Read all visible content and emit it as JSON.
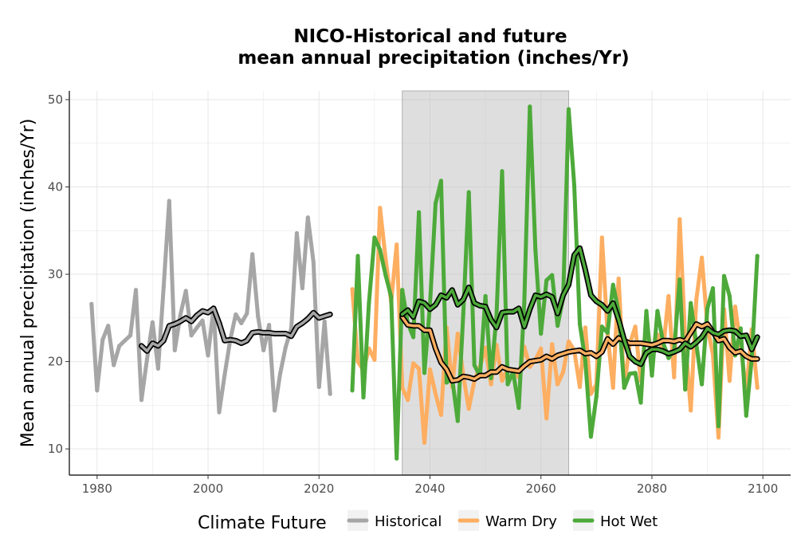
{
  "chart_data": {
    "type": "line",
    "title_lines": [
      "NICO-Historical and future",
      "mean annual precipitation (inches/Yr)"
    ],
    "xlabel": "",
    "ylabel": "Mean annual precipitation (inches/Yr)",
    "xlim": [
      1975,
      2105
    ],
    "ylim": [
      7,
      51
    ],
    "x_ticks": [
      1980,
      2000,
      2020,
      2040,
      2060,
      2080,
      2100
    ],
    "y_ticks": [
      10,
      20,
      30,
      40,
      50
    ],
    "grid": true,
    "shaded_period": [
      2035,
      2065
    ],
    "legend": {
      "title": "Climate Future",
      "placement": "bottom",
      "entries": [
        "Historical",
        "Warm Dry",
        "Hot Wet"
      ]
    },
    "series": [
      {
        "name": "Historical",
        "color": "#a6a6a6",
        "x": [
          1979,
          1980,
          1981,
          1982,
          1983,
          1984,
          1985,
          1986,
          1987,
          1988,
          1989,
          1990,
          1991,
          1992,
          1993,
          1994,
          1995,
          1996,
          1997,
          1998,
          1999,
          2000,
          2001,
          2002,
          2003,
          2004,
          2005,
          2006,
          2007,
          2008,
          2009,
          2010,
          2011,
          2012,
          2013,
          2014,
          2015,
          2016,
          2017,
          2018,
          2019,
          2020,
          2021,
          2022
        ],
        "values": [
          26.6,
          16.7,
          22.5,
          24.1,
          19.6,
          21.8,
          22.4,
          23.0,
          28.2,
          15.6,
          20.3,
          24.5,
          19.2,
          28.5,
          38.4,
          21.3,
          25.3,
          28.1,
          23.0,
          23.9,
          24.7,
          20.7,
          26.2,
          14.2,
          18.5,
          22.5,
          25.4,
          24.4,
          25.5,
          32.3,
          25.2,
          21.3,
          24.2,
          14.4,
          18.6,
          21.7,
          23.8,
          34.7,
          28.4,
          36.5,
          31.4,
          17.1,
          24.6,
          16.3
        ]
      },
      {
        "name": "Historical rolling mean",
        "color": "#a6a6a6",
        "x": [
          1988,
          1989,
          1990,
          1991,
          1992,
          1993,
          1994,
          1995,
          1996,
          1997,
          1998,
          1999,
          2000,
          2001,
          2002,
          2003,
          2004,
          2005,
          2006,
          2007,
          2008,
          2009,
          2010,
          2011,
          2012,
          2013,
          2014,
          2015,
          2016,
          2017,
          2018,
          2019,
          2020,
          2021,
          2022
        ],
        "values": [
          21.8,
          21.2,
          22.1,
          21.8,
          22.4,
          24.1,
          24.3,
          24.6,
          25.0,
          24.6,
          25.3,
          25.8,
          25.6,
          26.1,
          24.4,
          22.4,
          22.5,
          22.4,
          22.1,
          22.4,
          23.3,
          23.4,
          23.3,
          23.3,
          23.2,
          23.2,
          23.2,
          22.9,
          24.0,
          24.4,
          24.9,
          25.6,
          25.0,
          25.2,
          25.4
        ]
      },
      {
        "name": "Warm Dry",
        "color": "#fdae61",
        "x": [
          2026,
          2027,
          2028,
          2029,
          2030,
          2031,
          2032,
          2033,
          2034,
          2035,
          2036,
          2037,
          2038,
          2039,
          2040,
          2041,
          2042,
          2043,
          2044,
          2045,
          2046,
          2047,
          2048,
          2049,
          2050,
          2051,
          2052,
          2053,
          2054,
          2055,
          2056,
          2057,
          2058,
          2059,
          2060,
          2061,
          2062,
          2063,
          2064,
          2065,
          2066,
          2067,
          2068,
          2069,
          2070,
          2071,
          2072,
          2073,
          2074,
          2075,
          2076,
          2077,
          2078,
          2079,
          2080,
          2081,
          2082,
          2083,
          2084,
          2085,
          2086,
          2087,
          2088,
          2089,
          2090,
          2091,
          2092,
          2093,
          2094,
          2095,
          2096,
          2097,
          2098,
          2099
        ],
        "values": [
          28.3,
          20.0,
          19.0,
          21.5,
          20.2,
          37.6,
          31.8,
          26.8,
          33.4,
          17.0,
          15.6,
          19.8,
          19.2,
          10.7,
          19.1,
          16.3,
          13.9,
          23.9,
          17.1,
          23.2,
          18.4,
          14.6,
          17.8,
          19.4,
          21.6,
          17.4,
          21.9,
          17.8,
          19.2,
          18.9,
          18.2,
          21.7,
          19.4,
          20.2,
          21.5,
          13.5,
          22.0,
          17.4,
          18.8,
          22.3,
          21.3,
          17.1,
          23.9,
          16.3,
          17.4,
          34.2,
          23.2,
          17.0,
          29.5,
          17.0,
          22.0,
          24.0,
          17.8,
          24.4,
          20.6,
          23.1,
          21.2,
          27.5,
          18.2,
          36.3,
          22.6,
          14.4,
          27.1,
          31.9,
          24.0,
          20.8,
          11.3,
          26.0,
          17.8,
          26.3,
          21.8,
          16.5,
          23.7,
          17.0
        ]
      },
      {
        "name": "Warm Dry rolling mean",
        "color": "#fdae61",
        "x": [
          2035,
          2036,
          2037,
          2038,
          2039,
          2040,
          2041,
          2042,
          2043,
          2044,
          2045,
          2046,
          2047,
          2048,
          2049,
          2050,
          2051,
          2052,
          2053,
          2054,
          2055,
          2056,
          2057,
          2058,
          2059,
          2060,
          2061,
          2062,
          2063,
          2064,
          2065,
          2066,
          2067,
          2068,
          2069,
          2070,
          2071,
          2072,
          2073,
          2074,
          2075,
          2076,
          2077,
          2078,
          2079,
          2080,
          2081,
          2082,
          2083,
          2084,
          2085,
          2086,
          2087,
          2088,
          2089,
          2090,
          2091,
          2092,
          2093,
          2094,
          2095,
          2096,
          2097,
          2098,
          2099
        ],
        "values": [
          25.1,
          24.2,
          24.1,
          24.1,
          23.6,
          23.6,
          21.5,
          19.9,
          19.1,
          17.8,
          17.9,
          18.3,
          18.2,
          18.0,
          18.4,
          18.4,
          18.8,
          18.8,
          19.4,
          19.1,
          19.0,
          18.9,
          19.5,
          20.0,
          20.1,
          20.2,
          20.6,
          20.3,
          20.7,
          20.9,
          21.1,
          21.2,
          21.3,
          20.9,
          21.0,
          20.6,
          21.1,
          22.6,
          22.0,
          22.7,
          22.4,
          22.1,
          22.1,
          22.1,
          22.0,
          21.9,
          22.1,
          22.4,
          22.4,
          22.3,
          22.5,
          22.3,
          23.3,
          24.3,
          24.0,
          24.3,
          23.4,
          22.4,
          22.6,
          21.6,
          21.0,
          21.2,
          20.6,
          20.3,
          20.3
        ]
      },
      {
        "name": "Hot Wet",
        "color": "#4daa3a",
        "x": [
          2026,
          2027,
          2028,
          2029,
          2030,
          2031,
          2032,
          2033,
          2034,
          2035,
          2036,
          2037,
          2038,
          2039,
          2040,
          2041,
          2042,
          2043,
          2044,
          2045,
          2046,
          2047,
          2048,
          2049,
          2050,
          2051,
          2052,
          2053,
          2054,
          2055,
          2056,
          2057,
          2058,
          2059,
          2060,
          2061,
          2062,
          2063,
          2064,
          2065,
          2066,
          2067,
          2068,
          2069,
          2070,
          2071,
          2072,
          2073,
          2074,
          2075,
          2076,
          2077,
          2078,
          2079,
          2080,
          2081,
          2082,
          2083,
          2084,
          2085,
          2086,
          2087,
          2088,
          2089,
          2090,
          2091,
          2092,
          2093,
          2094,
          2095,
          2096,
          2097,
          2098,
          2099
        ],
        "values": [
          16.7,
          32.1,
          15.9,
          26.7,
          34.2,
          32.8,
          29.9,
          27.4,
          8.9,
          28.2,
          24.4,
          22.8,
          37.1,
          18.7,
          26.5,
          38.1,
          40.7,
          17.6,
          18.1,
          13.2,
          25.5,
          39.4,
          19.6,
          18.3,
          27.5,
          18.1,
          25.3,
          41.8,
          17.4,
          18.8,
          14.7,
          26.7,
          49.2,
          32.8,
          23.2,
          29.3,
          29.9,
          24.1,
          27.3,
          48.9,
          40.2,
          24.3,
          20.1,
          11.4,
          16.0,
          24.0,
          23.3,
          28.8,
          25.7,
          17.0,
          18.6,
          18.7,
          15.3,
          25.8,
          18.4,
          25.8,
          22.2,
          20.4,
          21.3,
          29.4,
          16.8,
          26.7,
          22.0,
          17.4,
          26.1,
          28.4,
          12.6,
          29.8,
          27.5,
          20.7,
          23.8,
          13.8,
          20.4,
          32.1
        ]
      },
      {
        "name": "Hot Wet rolling mean",
        "color": "#4daa3a",
        "x": [
          2035,
          2036,
          2037,
          2038,
          2039,
          2040,
          2041,
          2042,
          2043,
          2044,
          2045,
          2046,
          2047,
          2048,
          2049,
          2050,
          2051,
          2052,
          2053,
          2054,
          2055,
          2056,
          2057,
          2058,
          2059,
          2060,
          2061,
          2062,
          2063,
          2064,
          2065,
          2066,
          2067,
          2068,
          2069,
          2070,
          2071,
          2072,
          2073,
          2074,
          2075,
          2076,
          2077,
          2078,
          2079,
          2080,
          2081,
          2082,
          2083,
          2084,
          2085,
          2086,
          2087,
          2088,
          2089,
          2090,
          2091,
          2092,
          2093,
          2094,
          2095,
          2096,
          2097,
          2098,
          2099
        ],
        "values": [
          25.4,
          25.9,
          25.1,
          26.9,
          26.7,
          26.0,
          26.5,
          27.6,
          27.3,
          28.2,
          26.5,
          27.1,
          28.5,
          26.7,
          26.4,
          26.3,
          24.8,
          23.9,
          25.6,
          25.7,
          25.7,
          26.1,
          24.0,
          26.0,
          27.6,
          27.4,
          27.7,
          27.4,
          25.5,
          27.6,
          28.8,
          32.2,
          33.0,
          30.5,
          27.6,
          26.9,
          26.5,
          25.8,
          26.7,
          24.8,
          22.5,
          20.6,
          20.0,
          19.7,
          21.0,
          21.4,
          21.4,
          21.2,
          20.9,
          21.1,
          21.4,
          22.1,
          21.7,
          22.2,
          22.8,
          23.8,
          23.3,
          23.1,
          23.5,
          23.6,
          23.5,
          22.9,
          23.0,
          21.4,
          22.8
        ]
      }
    ]
  }
}
